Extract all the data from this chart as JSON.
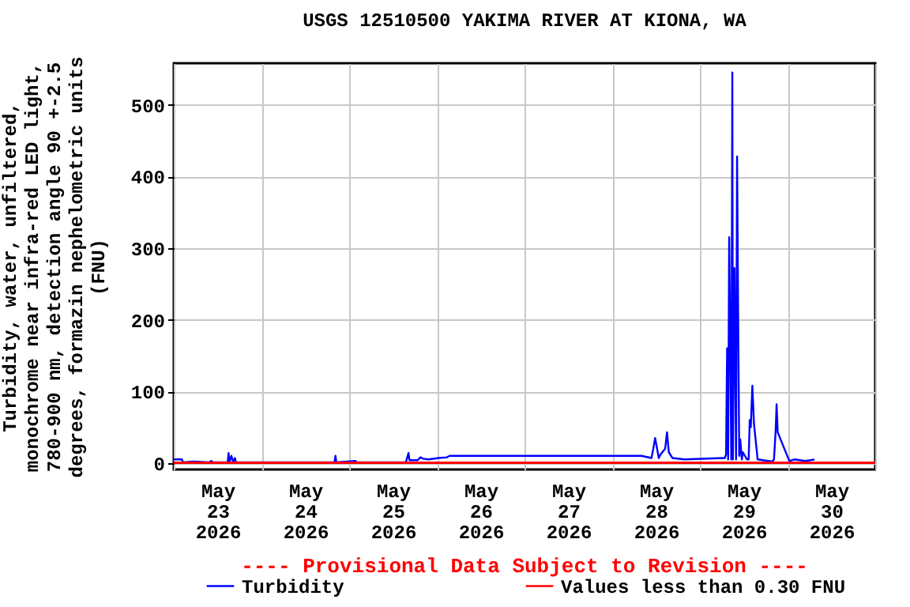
{
  "chart_data": {
    "type": "line",
    "title": "USGS 12510500 YAKIMA RIVER AT KIONA, WA",
    "ylabel": "Turbidity, water, unfiltered,\nmonochrome near infra-red LED light,\n780-900 nm, detection angle 90 +-2.5\ndegrees, formazin nephelometric units\n(FNU)",
    "annotations": [
      "---- Provisional Data Subject to Revision ----"
    ],
    "xlim": [
      "2026-05-23T00:00",
      "2026-05-31T00:00"
    ],
    "xticks": [
      {
        "value": "2026-05-23T00:00",
        "label": null
      },
      {
        "value": "2026-05-23T12:00",
        "label": "May\n23\n2026"
      },
      {
        "value": "2026-05-24T00:00",
        "label": null
      },
      {
        "value": "2026-05-24T12:00",
        "label": "May\n24\n2026"
      },
      {
        "value": "2026-05-25T00:00",
        "label": null
      },
      {
        "value": "2026-05-25T12:00",
        "label": "May\n25\n2026"
      },
      {
        "value": "2026-05-26T00:00",
        "label": null
      },
      {
        "value": "2026-05-26T12:00",
        "label": "May\n26\n2026"
      },
      {
        "value": "2026-05-27T00:00",
        "label": null
      },
      {
        "value": "2026-05-27T12:00",
        "label": "May\n27\n2026"
      },
      {
        "value": "2026-05-28T00:00",
        "label": null
      },
      {
        "value": "2026-05-28T12:00",
        "label": "May\n28\n2026"
      },
      {
        "value": "2026-05-29T00:00",
        "label": null
      },
      {
        "value": "2026-05-29T12:00",
        "label": "May\n29\n2026"
      },
      {
        "value": "2026-05-30T00:00",
        "label": null
      },
      {
        "value": "2026-05-30T12:00",
        "label": "May\n30\n2026"
      },
      {
        "value": "2026-05-31T00:00",
        "label": null
      }
    ],
    "ylim": [
      -9,
      558
    ],
    "yticks": [
      0,
      100,
      200,
      300,
      400,
      500
    ],
    "grid": true,
    "legend": "bottom",
    "ref_lines": [
      {
        "axis": "y",
        "value": 0.3,
        "label": "Values less than 0.30 FNU",
        "color": "#ff0000"
      }
    ],
    "series": [
      {
        "name": "Turbidity",
        "color": "#0000ff",
        "x": [
          "2026-05-23T00:00",
          "2026-05-23T02:15",
          "2026-05-23T02:30",
          "2026-05-23T05:30",
          "2026-05-23T09:45",
          "2026-05-23T10:15",
          "2026-05-23T10:45",
          "2026-05-23T14:45",
          "2026-05-23T15:00",
          "2026-05-23T15:15",
          "2026-05-23T15:45",
          "2026-05-23T16:15",
          "2026-05-23T16:45",
          "2026-05-23T17:00",
          "2026-05-24T20:00",
          "2026-05-24T20:15",
          "2026-05-24T20:30",
          "2026-05-25T01:45",
          "2026-05-25T02:00",
          "2026-05-25T15:30",
          "2026-05-25T15:45",
          "2026-05-25T16:15",
          "2026-05-25T16:30",
          "2026-05-25T18:45",
          "2026-05-25T19:30",
          "2026-05-25T20:15",
          "2026-05-25T21:45",
          "2026-05-26T00:30",
          "2026-05-26T02:45",
          "2026-05-26T03:30",
          "2026-05-28T08:00",
          "2026-05-28T10:45",
          "2026-05-28T11:15",
          "2026-05-28T11:45",
          "2026-05-28T12:45",
          "2026-05-28T13:15",
          "2026-05-28T14:00",
          "2026-05-28T14:30",
          "2026-05-28T15:00",
          "2026-05-28T15:30",
          "2026-05-28T16:30",
          "2026-05-28T19:45",
          "2026-05-29T06:30",
          "2026-05-29T06:50",
          "2026-05-29T07:10",
          "2026-05-29T07:27",
          "2026-05-29T07:44",
          "2026-05-29T08:01",
          "2026-05-29T08:19",
          "2026-05-29T08:36",
          "2026-05-29T08:53",
          "2026-05-29T09:02",
          "2026-05-29T09:28",
          "2026-05-29T09:54",
          "2026-05-29T10:11",
          "2026-05-29T10:28",
          "2026-05-29T10:46",
          "2026-05-29T11:03",
          "2026-05-29T11:29",
          "2026-05-29T11:46",
          "2026-05-29T12:56",
          "2026-05-29T13:21",
          "2026-05-29T13:39",
          "2026-05-29T13:56",
          "2026-05-29T14:22",
          "2026-05-29T14:48",
          "2026-05-29T15:49",
          "2026-05-29T17:15",
          "2026-05-29T18:42",
          "2026-05-29T19:51",
          "2026-05-29T20:17",
          "2026-05-29T20:43",
          "2026-05-29T21:00",
          "2026-05-29T21:18",
          "2026-05-30T00:28",
          "2026-05-30T01:54",
          "2026-05-30T04:47",
          "2026-05-30T06:14",
          "2026-05-30T07:23"
        ],
        "values": [
          5,
          5,
          1,
          2,
          1,
          3,
          1,
          1,
          14,
          1,
          10,
          2,
          7,
          1,
          1,
          10,
          1,
          3,
          1,
          1,
          5,
          14,
          4,
          4,
          8,
          6,
          5,
          7,
          8,
          10,
          10,
          7,
          20,
          35,
          7,
          12,
          17,
          20,
          43,
          15,
          7,
          5,
          7,
          7,
          12,
          160,
          5,
          315,
          160,
          5,
          545,
          5,
          272,
          5,
          428,
          215,
          10,
          33,
          5,
          15,
          5,
          5,
          60,
          50,
          108,
          55,
          5,
          4,
          3,
          2,
          5,
          43,
          82,
          43,
          3,
          5,
          3,
          4,
          5
        ]
      }
    ]
  }
}
